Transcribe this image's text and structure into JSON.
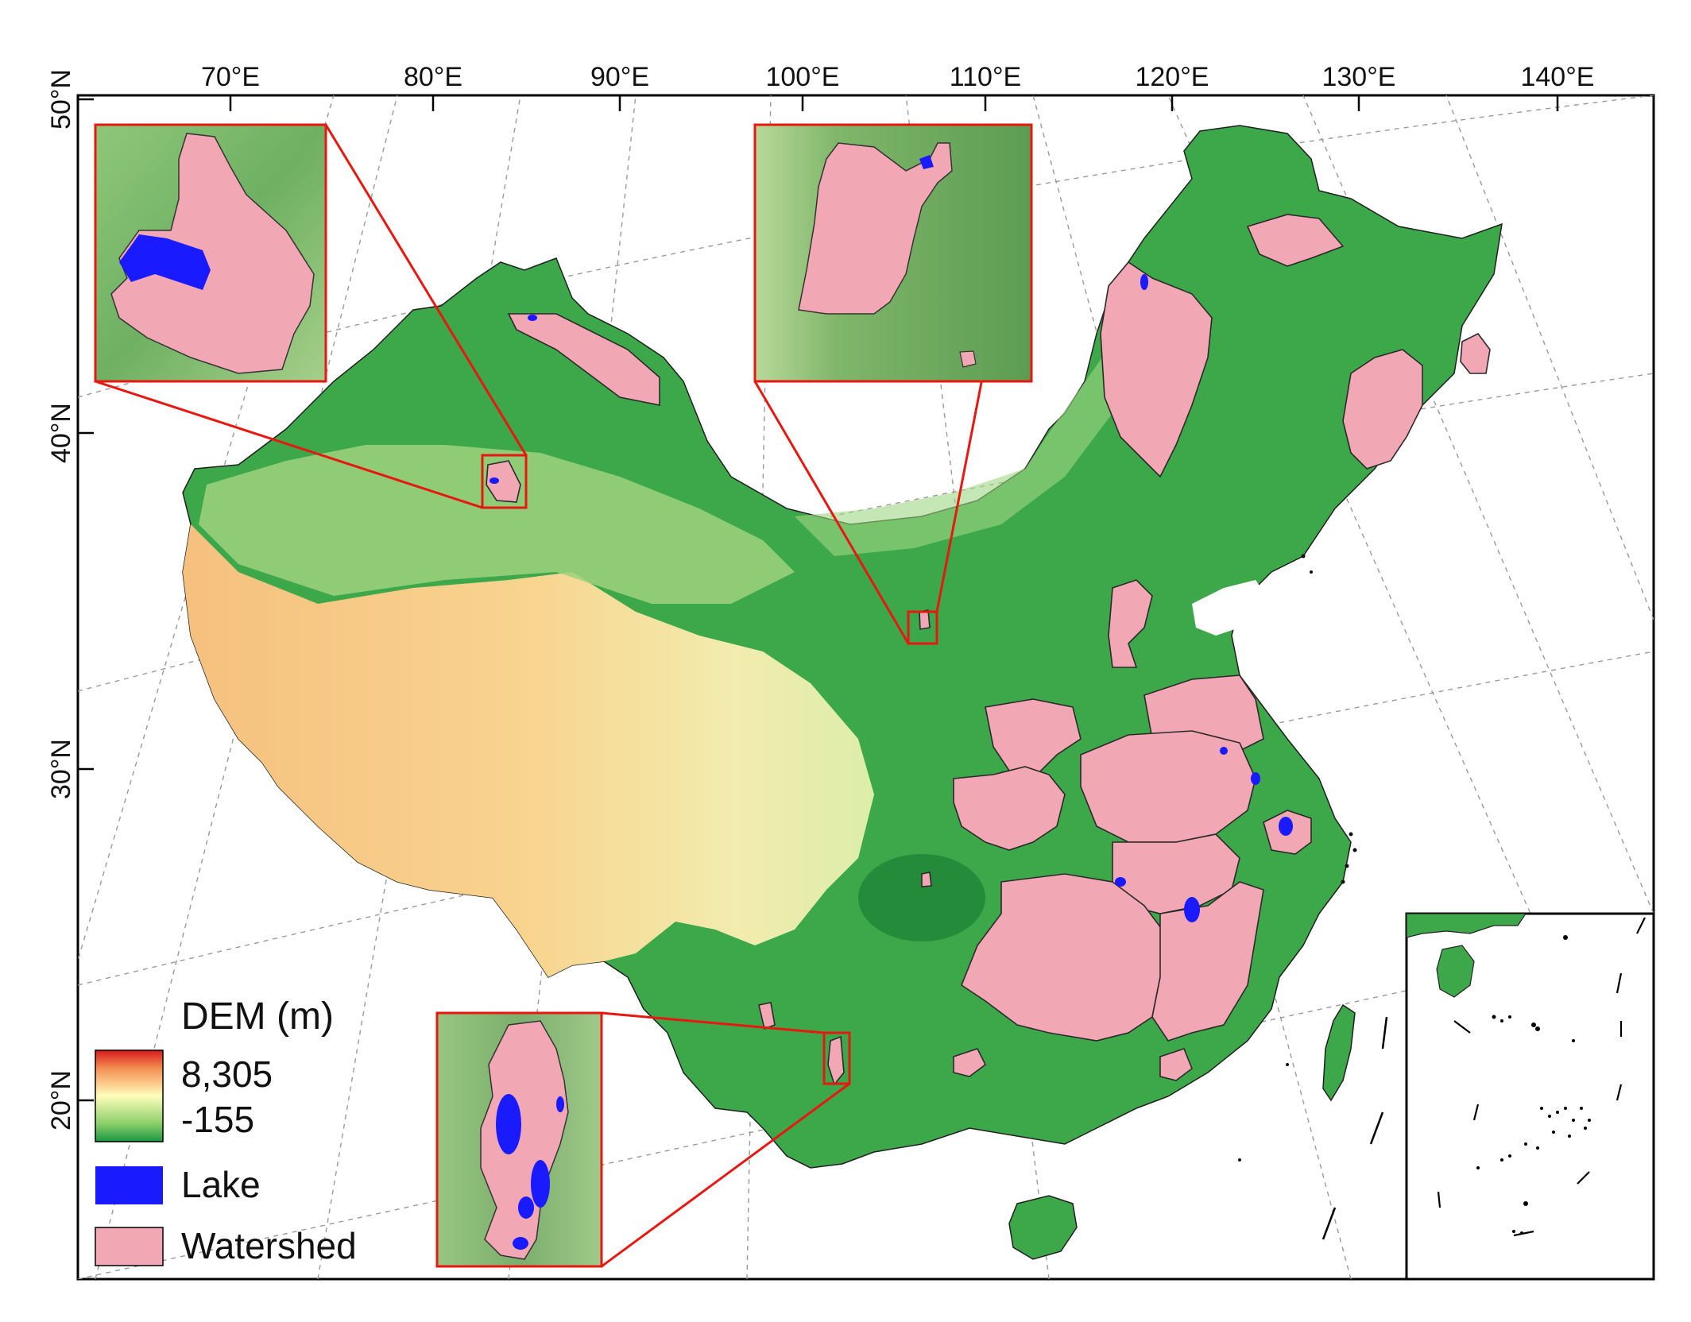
{
  "map": {
    "top_labels": [
      "70°E",
      "80°E",
      "90°E",
      "100°E",
      "110°E",
      "120°E",
      "130°E",
      "140°E"
    ],
    "left_labels": [
      "50°N",
      "40°N",
      "30°N",
      "20°N"
    ]
  },
  "legend": {
    "title": "DEM (m)",
    "max_label": "8,305",
    "min_label": "-155",
    "lake_label": "Lake",
    "watershed_label": "Watershed"
  },
  "colors": {
    "lake": "#1a1aff",
    "watershed": "#f2a7b4",
    "inset_border": "#e8170f",
    "dem_high": "#d7191c",
    "dem_mid": "#fffdbb",
    "dem_low": "#1a9641"
  }
}
